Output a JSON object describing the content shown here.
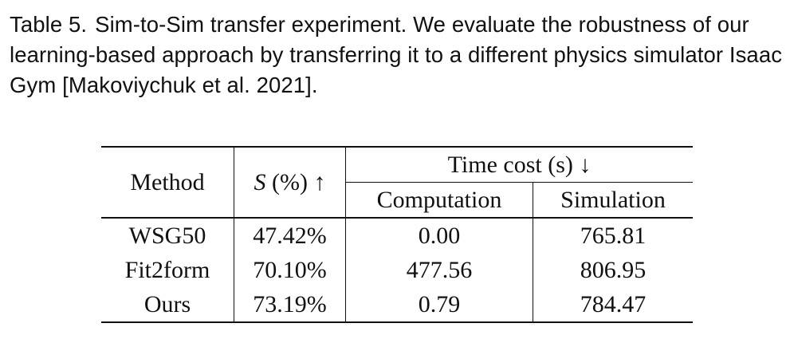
{
  "caption": {
    "label": "Table 5.",
    "text": "Sim-to-Sim transfer experiment. We evaluate the robustness of our learning-based approach by transferring it to a different physics simulator Isaac Gym [Makoviychuk et al. 2021]."
  },
  "table": {
    "headers": {
      "method": "Method",
      "success_symbol": "S",
      "success_unit": " (%) ↑",
      "time_cost": "Time cost (s) ↓",
      "computation": "Computation",
      "simulation": "Simulation"
    },
    "rows": [
      {
        "method": "WSG50",
        "success": "47.42%",
        "computation": "0.00",
        "simulation": "765.81"
      },
      {
        "method": "Fit2form",
        "success": "70.10%",
        "computation": "477.56",
        "simulation": "806.95"
      },
      {
        "method": "Ours",
        "success": "73.19%",
        "computation": "0.79",
        "simulation": "784.47"
      }
    ]
  }
}
